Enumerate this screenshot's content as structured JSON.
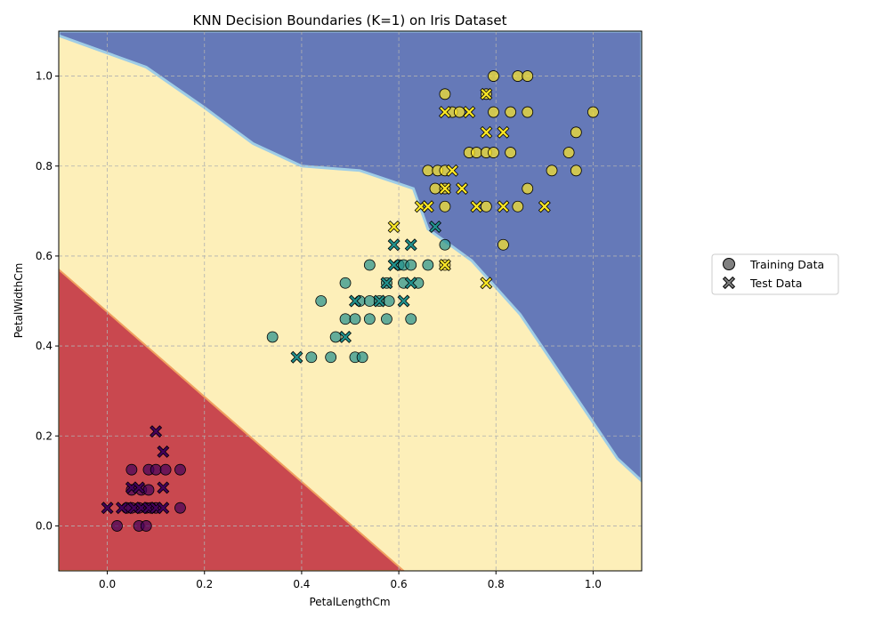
{
  "chart_data": {
    "type": "scatter",
    "title": "KNN Decision Boundaries (K=1) on Iris Dataset",
    "xlabel": "PetalLengthCm",
    "ylabel": "PetalWidthCm",
    "xlim": [
      -0.1,
      1.1
    ],
    "ylim": [
      -0.1,
      1.1
    ],
    "xticks": [
      "0.0",
      "0.2",
      "0.4",
      "0.6",
      "0.8",
      "1.0"
    ],
    "yticks": [
      "0.0",
      "0.2",
      "0.4",
      "0.6",
      "0.8",
      "1.0"
    ],
    "grid": true,
    "legend_position": "right",
    "legend": [
      {
        "label": "Training Data",
        "marker": "circle"
      },
      {
        "label": "Test Data",
        "marker": "x"
      }
    ],
    "region_colors": {
      "class_0": "#c9484f",
      "class_1": "#fdefb9",
      "class_2": "#6579b8",
      "edge": "#9fcde6"
    },
    "class_colors": {
      "class_0": "#44015a",
      "class_1": "#21908c",
      "class_2": "#fde725"
    },
    "decision_regions": [
      {
        "class": "class_0",
        "boundary": [
          [
            -0.1,
            0.57
          ],
          [
            0.61,
            -0.1
          ]
        ]
      },
      {
        "class": "class_2",
        "boundary": [
          [
            -0.1,
            1.09
          ],
          [
            0.08,
            1.02
          ],
          [
            0.2,
            0.93
          ],
          [
            0.3,
            0.85
          ],
          [
            0.4,
            0.8
          ],
          [
            0.52,
            0.79
          ],
          [
            0.63,
            0.75
          ],
          [
            0.66,
            0.66
          ],
          [
            0.75,
            0.59
          ],
          [
            0.85,
            0.47
          ],
          [
            0.9,
            0.39
          ],
          [
            1.05,
            0.15
          ],
          [
            1.1,
            0.1
          ]
        ]
      }
    ],
    "series": [
      {
        "name": "Training Data",
        "marker": "circle",
        "points": [
          {
            "x": 0.02,
            "y": 0.0,
            "c": 0
          },
          {
            "x": 0.05,
            "y": 0.04,
            "c": 0
          },
          {
            "x": 0.05,
            "y": 0.08,
            "c": 0
          },
          {
            "x": 0.05,
            "y": 0.125,
            "c": 0
          },
          {
            "x": 0.065,
            "y": 0.04,
            "c": 0
          },
          {
            "x": 0.065,
            "y": 0.0,
            "c": 0
          },
          {
            "x": 0.07,
            "y": 0.08,
            "c": 0
          },
          {
            "x": 0.08,
            "y": 0.04,
            "c": 0
          },
          {
            "x": 0.08,
            "y": 0.0,
            "c": 0
          },
          {
            "x": 0.085,
            "y": 0.125,
            "c": 0
          },
          {
            "x": 0.085,
            "y": 0.08,
            "c": 0
          },
          {
            "x": 0.1,
            "y": 0.125,
            "c": 0
          },
          {
            "x": 0.1,
            "y": 0.04,
            "c": 0
          },
          {
            "x": 0.12,
            "y": 0.125,
            "c": 0
          },
          {
            "x": 0.15,
            "y": 0.125,
            "c": 0
          },
          {
            "x": 0.15,
            "y": 0.04,
            "c": 0
          },
          {
            "x": 0.04,
            "y": 0.04,
            "c": 0
          },
          {
            "x": 0.09,
            "y": 0.04,
            "c": 0
          },
          {
            "x": 0.34,
            "y": 0.42,
            "c": 1
          },
          {
            "x": 0.42,
            "y": 0.375,
            "c": 1
          },
          {
            "x": 0.44,
            "y": 0.5,
            "c": 1
          },
          {
            "x": 0.46,
            "y": 0.375,
            "c": 1
          },
          {
            "x": 0.47,
            "y": 0.42,
            "c": 1
          },
          {
            "x": 0.49,
            "y": 0.46,
            "c": 1
          },
          {
            "x": 0.49,
            "y": 0.54,
            "c": 1
          },
          {
            "x": 0.51,
            "y": 0.375,
            "c": 1
          },
          {
            "x": 0.51,
            "y": 0.46,
            "c": 1
          },
          {
            "x": 0.52,
            "y": 0.5,
            "c": 1
          },
          {
            "x": 0.525,
            "y": 0.375,
            "c": 1
          },
          {
            "x": 0.54,
            "y": 0.46,
            "c": 1
          },
          {
            "x": 0.54,
            "y": 0.5,
            "c": 1
          },
          {
            "x": 0.54,
            "y": 0.58,
            "c": 1
          },
          {
            "x": 0.56,
            "y": 0.5,
            "c": 1
          },
          {
            "x": 0.575,
            "y": 0.46,
            "c": 1
          },
          {
            "x": 0.575,
            "y": 0.54,
            "c": 1
          },
          {
            "x": 0.58,
            "y": 0.5,
            "c": 1
          },
          {
            "x": 0.6,
            "y": 0.58,
            "c": 1
          },
          {
            "x": 0.61,
            "y": 0.54,
            "c": 1
          },
          {
            "x": 0.61,
            "y": 0.58,
            "c": 1
          },
          {
            "x": 0.625,
            "y": 0.46,
            "c": 1
          },
          {
            "x": 0.625,
            "y": 0.58,
            "c": 1
          },
          {
            "x": 0.64,
            "y": 0.54,
            "c": 1
          },
          {
            "x": 0.66,
            "y": 0.58,
            "c": 1
          },
          {
            "x": 0.695,
            "y": 0.625,
            "c": 1
          },
          {
            "x": 0.66,
            "y": 0.79,
            "c": 2
          },
          {
            "x": 0.675,
            "y": 0.75,
            "c": 2
          },
          {
            "x": 0.68,
            "y": 0.79,
            "c": 2
          },
          {
            "x": 0.695,
            "y": 0.96,
            "c": 2
          },
          {
            "x": 0.695,
            "y": 0.71,
            "c": 2
          },
          {
            "x": 0.695,
            "y": 0.79,
            "c": 2
          },
          {
            "x": 0.71,
            "y": 0.92,
            "c": 2
          },
          {
            "x": 0.725,
            "y": 0.92,
            "c": 2
          },
          {
            "x": 0.745,
            "y": 0.83,
            "c": 2
          },
          {
            "x": 0.76,
            "y": 0.83,
            "c": 2
          },
          {
            "x": 0.78,
            "y": 0.96,
            "c": 2
          },
          {
            "x": 0.78,
            "y": 0.71,
            "c": 2
          },
          {
            "x": 0.78,
            "y": 0.83,
            "c": 2
          },
          {
            "x": 0.795,
            "y": 1.0,
            "c": 2
          },
          {
            "x": 0.795,
            "y": 0.92,
            "c": 2
          },
          {
            "x": 0.795,
            "y": 0.83,
            "c": 2
          },
          {
            "x": 0.815,
            "y": 0.625,
            "c": 2
          },
          {
            "x": 0.83,
            "y": 0.92,
            "c": 2
          },
          {
            "x": 0.83,
            "y": 0.83,
            "c": 2
          },
          {
            "x": 0.845,
            "y": 1.0,
            "c": 2
          },
          {
            "x": 0.845,
            "y": 0.71,
            "c": 2
          },
          {
            "x": 0.865,
            "y": 1.0,
            "c": 2
          },
          {
            "x": 0.865,
            "y": 0.92,
            "c": 2
          },
          {
            "x": 0.865,
            "y": 0.75,
            "c": 2
          },
          {
            "x": 0.915,
            "y": 0.79,
            "c": 2
          },
          {
            "x": 0.95,
            "y": 0.83,
            "c": 2
          },
          {
            "x": 0.965,
            "y": 0.875,
            "c": 2
          },
          {
            "x": 0.965,
            "y": 0.79,
            "c": 2
          },
          {
            "x": 1.0,
            "y": 0.92,
            "c": 2
          },
          {
            "x": 0.695,
            "y": 0.58,
            "c": 2
          },
          {
            "x": 0.695,
            "y": 0.75,
            "c": 2
          }
        ]
      },
      {
        "name": "Test Data",
        "marker": "x",
        "points": [
          {
            "x": 0.0,
            "y": 0.04,
            "c": 0
          },
          {
            "x": 0.03,
            "y": 0.04,
            "c": 0
          },
          {
            "x": 0.05,
            "y": 0.085,
            "c": 0
          },
          {
            "x": 0.055,
            "y": 0.04,
            "c": 0
          },
          {
            "x": 0.065,
            "y": 0.085,
            "c": 0
          },
          {
            "x": 0.07,
            "y": 0.04,
            "c": 0
          },
          {
            "x": 0.085,
            "y": 0.04,
            "c": 0
          },
          {
            "x": 0.1,
            "y": 0.21,
            "c": 0
          },
          {
            "x": 0.1,
            "y": 0.04,
            "c": 0
          },
          {
            "x": 0.115,
            "y": 0.165,
            "c": 0
          },
          {
            "x": 0.115,
            "y": 0.085,
            "c": 0
          },
          {
            "x": 0.115,
            "y": 0.04,
            "c": 0
          },
          {
            "x": 0.39,
            "y": 0.375,
            "c": 1
          },
          {
            "x": 0.49,
            "y": 0.42,
            "c": 1
          },
          {
            "x": 0.51,
            "y": 0.5,
            "c": 1
          },
          {
            "x": 0.56,
            "y": 0.5,
            "c": 1
          },
          {
            "x": 0.575,
            "y": 0.54,
            "c": 1
          },
          {
            "x": 0.59,
            "y": 0.58,
            "c": 1
          },
          {
            "x": 0.59,
            "y": 0.625,
            "c": 1
          },
          {
            "x": 0.61,
            "y": 0.5,
            "c": 1
          },
          {
            "x": 0.625,
            "y": 0.625,
            "c": 1
          },
          {
            "x": 0.625,
            "y": 0.54,
            "c": 1
          },
          {
            "x": 0.675,
            "y": 0.665,
            "c": 1
          },
          {
            "x": 0.59,
            "y": 0.665,
            "c": 2
          },
          {
            "x": 0.645,
            "y": 0.71,
            "c": 2
          },
          {
            "x": 0.66,
            "y": 0.71,
            "c": 2
          },
          {
            "x": 0.695,
            "y": 0.92,
            "c": 2
          },
          {
            "x": 0.695,
            "y": 0.75,
            "c": 2
          },
          {
            "x": 0.695,
            "y": 0.58,
            "c": 2
          },
          {
            "x": 0.71,
            "y": 0.79,
            "c": 2
          },
          {
            "x": 0.73,
            "y": 0.75,
            "c": 2
          },
          {
            "x": 0.745,
            "y": 0.92,
            "c": 2
          },
          {
            "x": 0.76,
            "y": 0.71,
            "c": 2
          },
          {
            "x": 0.78,
            "y": 0.96,
            "c": 2
          },
          {
            "x": 0.78,
            "y": 0.875,
            "c": 2
          },
          {
            "x": 0.78,
            "y": 0.54,
            "c": 2
          },
          {
            "x": 0.815,
            "y": 0.875,
            "c": 2
          },
          {
            "x": 0.815,
            "y": 0.71,
            "c": 2
          },
          {
            "x": 0.9,
            "y": 0.71,
            "c": 2
          }
        ]
      }
    ]
  }
}
